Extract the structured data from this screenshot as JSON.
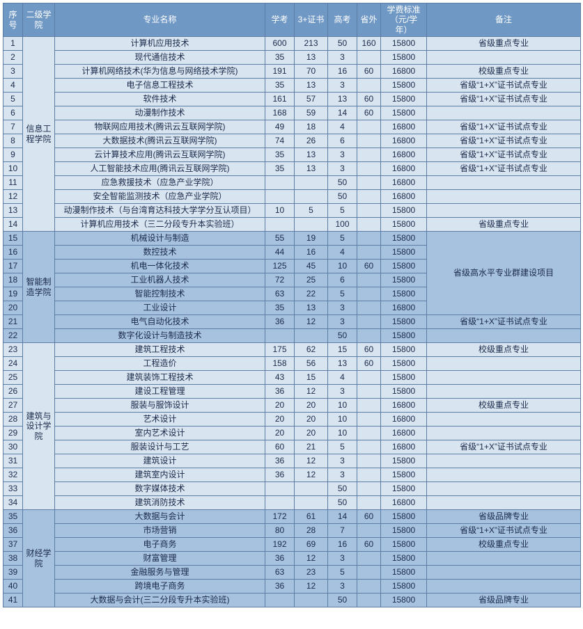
{
  "headers": {
    "seq": "序号",
    "college": "二级学院",
    "major": "专业名称",
    "xuekao": "学考",
    "cert3": "3+证书",
    "gaokao": "高考",
    "outprov": "省外",
    "tuition": "学费标准（元/学年）",
    "note": "备注"
  },
  "colwidths": {
    "seq": 28,
    "college": 46,
    "major": 302,
    "xuekao": 42,
    "cert3": 48,
    "gaokao": 42,
    "outprov": 34,
    "tuition": 66,
    "note": 221
  },
  "groups": [
    {
      "college": "信息工程学院",
      "cls": "g1",
      "rows": [
        {
          "seq": "1",
          "major": "计算机应用技术",
          "xuekao": "600",
          "cert3": "213",
          "gaokao": "50",
          "out": "160",
          "fee": "15800",
          "note": "省级重点专业"
        },
        {
          "seq": "2",
          "major": "现代通信技术",
          "xuekao": "35",
          "cert3": "13",
          "gaokao": "3",
          "out": "",
          "fee": "15800",
          "note": ""
        },
        {
          "seq": "3",
          "major": "计算机网络技术(华为信息与网络技术学院)",
          "xuekao": "191",
          "cert3": "70",
          "gaokao": "16",
          "out": "60",
          "fee": "16800",
          "note": "校级重点专业"
        },
        {
          "seq": "4",
          "major": "电子信息工程技术",
          "xuekao": "35",
          "cert3": "13",
          "gaokao": "3",
          "out": "",
          "fee": "15800",
          "note": "省级“1+X”证书试点专业"
        },
        {
          "seq": "5",
          "major": "软件技术",
          "xuekao": "161",
          "cert3": "57",
          "gaokao": "13",
          "out": "60",
          "fee": "15800",
          "note": "省级“1+X”证书试点专业"
        },
        {
          "seq": "6",
          "major": "动漫制作技术",
          "xuekao": "168",
          "cert3": "59",
          "gaokao": "14",
          "out": "60",
          "fee": "15800",
          "note": ""
        },
        {
          "seq": "7",
          "major": "物联网应用技术(腾讯云互联网学院)",
          "xuekao": "49",
          "cert3": "18",
          "gaokao": "4",
          "out": "",
          "fee": "16800",
          "note": "省级“1+X”证书试点专业"
        },
        {
          "seq": "8",
          "major": "大数据技术(腾讯云互联网学院)",
          "xuekao": "74",
          "cert3": "26",
          "gaokao": "6",
          "out": "",
          "fee": "16800",
          "note": "省级“1+X”证书试点专业"
        },
        {
          "seq": "9",
          "major": "云计算技术应用(腾讯云互联网学院)",
          "xuekao": "35",
          "cert3": "13",
          "gaokao": "3",
          "out": "",
          "fee": "16800",
          "note": "省级“1+X”证书试点专业"
        },
        {
          "seq": "10",
          "major": "人工智能技术应用(腾讯云互联网学院)",
          "xuekao": "35",
          "cert3": "13",
          "gaokao": "3",
          "out": "",
          "fee": "16800",
          "note": "省级“1+X”证书试点专业"
        },
        {
          "seq": "11",
          "major": "应急救援技术（应急产业学院）",
          "xuekao": "",
          "cert3": "",
          "gaokao": "50",
          "out": "",
          "fee": "16800",
          "note": ""
        },
        {
          "seq": "12",
          "major": "安全智能监测技术（应急产业学院）",
          "xuekao": "",
          "cert3": "",
          "gaokao": "50",
          "out": "",
          "fee": "16800",
          "note": ""
        },
        {
          "seq": "13",
          "major": "动漫制作技术（与台湾育达科技大学学分互认项目）",
          "xuekao": "10",
          "cert3": "5",
          "gaokao": "5",
          "out": "",
          "fee": "15800",
          "note": ""
        },
        {
          "seq": "14",
          "major": "计算机应用技术（三二分段专升本实验班）",
          "xuekao": "",
          "cert3": "",
          "gaokao": "100",
          "out": "",
          "fee": "15800",
          "note": "省级重点专业"
        }
      ]
    },
    {
      "college": "智能制造学院",
      "cls": "g2",
      "merge_note": {
        "text": "省级高水平专业群建设项目",
        "rows": 6
      },
      "rows": [
        {
          "seq": "15",
          "major": "机械设计与制造",
          "xuekao": "55",
          "cert3": "19",
          "gaokao": "5",
          "out": "",
          "fee": "15800"
        },
        {
          "seq": "16",
          "major": "数控技术",
          "xuekao": "44",
          "cert3": "16",
          "gaokao": "4",
          "out": "",
          "fee": "15800"
        },
        {
          "seq": "17",
          "major": "机电一体化技术",
          "xuekao": "125",
          "cert3": "45",
          "gaokao": "10",
          "out": "60",
          "fee": "15800"
        },
        {
          "seq": "18",
          "major": "工业机器人技术",
          "xuekao": "72",
          "cert3": "25",
          "gaokao": "6",
          "out": "",
          "fee": "15800"
        },
        {
          "seq": "19",
          "major": "智能控制技术",
          "xuekao": "63",
          "cert3": "22",
          "gaokao": "5",
          "out": "",
          "fee": "15800"
        },
        {
          "seq": "20",
          "major": "工业设计",
          "xuekao": "35",
          "cert3": "13",
          "gaokao": "3",
          "out": "",
          "fee": "16800"
        },
        {
          "seq": "21",
          "major": "电气自动化技术",
          "xuekao": "36",
          "cert3": "12",
          "gaokao": "3",
          "out": "",
          "fee": "15800",
          "note": "省级“1+X”证书试点专业"
        },
        {
          "seq": "22",
          "major": "数字化设计与制造技术",
          "xuekao": "",
          "cert3": "",
          "gaokao": "50",
          "out": "",
          "fee": "15800",
          "note": ""
        }
      ]
    },
    {
      "college": "建筑与设计学院",
      "cls": "g3",
      "rows": [
        {
          "seq": "23",
          "major": "建筑工程技术",
          "xuekao": "175",
          "cert3": "62",
          "gaokao": "15",
          "out": "60",
          "fee": "15800",
          "note": "校级重点专业"
        },
        {
          "seq": "24",
          "major": "工程造价",
          "xuekao": "158",
          "cert3": "56",
          "gaokao": "13",
          "out": "60",
          "fee": "15800",
          "note": ""
        },
        {
          "seq": "25",
          "major": "建筑装饰工程技术",
          "xuekao": "43",
          "cert3": "15",
          "gaokao": "4",
          "out": "",
          "fee": "15800",
          "note": ""
        },
        {
          "seq": "26",
          "major": "建设工程管理",
          "xuekao": "36",
          "cert3": "12",
          "gaokao": "3",
          "out": "",
          "fee": "15800",
          "note": ""
        },
        {
          "seq": "27",
          "major": "服装与服饰设计",
          "xuekao": "20",
          "cert3": "20",
          "gaokao": "10",
          "out": "",
          "fee": "16800",
          "note": "校级重点专业"
        },
        {
          "seq": "28",
          "major": "艺术设计",
          "xuekao": "20",
          "cert3": "20",
          "gaokao": "10",
          "out": "",
          "fee": "16800",
          "note": ""
        },
        {
          "seq": "29",
          "major": "室内艺术设计",
          "xuekao": "20",
          "cert3": "20",
          "gaokao": "10",
          "out": "",
          "fee": "16800",
          "note": ""
        },
        {
          "seq": "30",
          "major": "服装设计与工艺",
          "xuekao": "60",
          "cert3": "21",
          "gaokao": "5",
          "out": "",
          "fee": "16800",
          "note": "省级“1+X”证书试点专业"
        },
        {
          "seq": "31",
          "major": "建筑设计",
          "xuekao": "36",
          "cert3": "12",
          "gaokao": "3",
          "out": "",
          "fee": "15800",
          "note": ""
        },
        {
          "seq": "32",
          "major": "建筑室内设计",
          "xuekao": "36",
          "cert3": "12",
          "gaokao": "3",
          "out": "",
          "fee": "15800",
          "note": ""
        },
        {
          "seq": "33",
          "major": "数字媒体技术",
          "xuekao": "",
          "cert3": "",
          "gaokao": "50",
          "out": "",
          "fee": "15800",
          "note": ""
        },
        {
          "seq": "34",
          "major": "建筑消防技术",
          "xuekao": "",
          "cert3": "",
          "gaokao": "50",
          "out": "",
          "fee": "16800",
          "note": ""
        }
      ]
    },
    {
      "college": "财经学院",
      "cls": "g4",
      "rows": [
        {
          "seq": "35",
          "major": "大数据与会计",
          "xuekao": "172",
          "cert3": "61",
          "gaokao": "14",
          "out": "60",
          "fee": "15800",
          "note": "省级品牌专业"
        },
        {
          "seq": "36",
          "major": "市场营销",
          "xuekao": "80",
          "cert3": "28",
          "gaokao": "7",
          "out": "",
          "fee": "15800",
          "note": "省级“1+X”证书试点专业"
        },
        {
          "seq": "37",
          "major": "电子商务",
          "xuekao": "192",
          "cert3": "69",
          "gaokao": "16",
          "out": "60",
          "fee": "15800",
          "note": "校级重点专业"
        },
        {
          "seq": "38",
          "major": "财富管理",
          "xuekao": "36",
          "cert3": "12",
          "gaokao": "3",
          "out": "",
          "fee": "15800",
          "note": ""
        },
        {
          "seq": "39",
          "major": "金融服务与管理",
          "xuekao": "63",
          "cert3": "23",
          "gaokao": "5",
          "out": "",
          "fee": "15800",
          "note": ""
        },
        {
          "seq": "40",
          "major": "跨境电子商务",
          "xuekao": "36",
          "cert3": "12",
          "gaokao": "3",
          "out": "",
          "fee": "15800",
          "note": ""
        },
        {
          "seq": "41",
          "major": "大数据与会计(三二分段专升本实验班)",
          "xuekao": "",
          "cert3": "",
          "gaokao": "50",
          "out": "",
          "fee": "15800",
          "note": "省级品牌专业"
        }
      ]
    }
  ]
}
